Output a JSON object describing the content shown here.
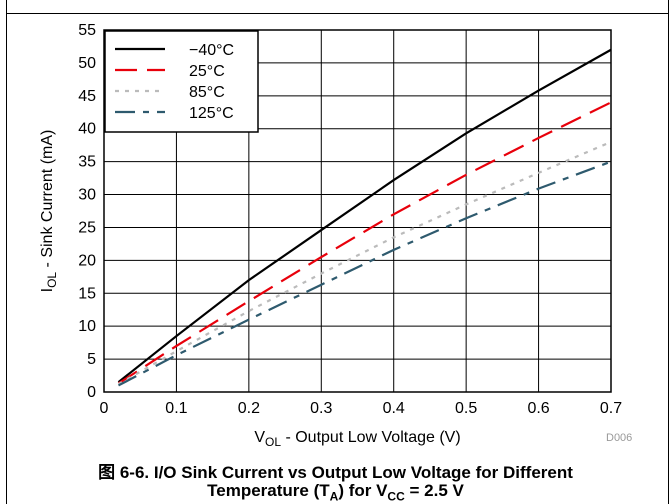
{
  "chart_data": {
    "type": "line",
    "xlabel_parts": [
      "V",
      "OL",
      " - Output Low Voltage (V)"
    ],
    "ylabel_parts": [
      "I",
      "OL",
      " - Sink Current (mA)"
    ],
    "xlim": [
      0,
      0.7
    ],
    "ylim": [
      0,
      55
    ],
    "x_ticks": [
      "0",
      "0.1",
      "0.2",
      "0.3",
      "0.4",
      "0.5",
      "0.6",
      "0.7"
    ],
    "y_ticks": [
      "0",
      "5",
      "10",
      "15",
      "20",
      "25",
      "30",
      "35",
      "40",
      "45",
      "50",
      "55"
    ],
    "grid": true,
    "legend_position": "top-left",
    "series": [
      {
        "name": "−40°C",
        "color": "#000000",
        "dash": "solid",
        "x": [
          0.02,
          0.1,
          0.2,
          0.3,
          0.4,
          0.5,
          0.6,
          0.7
        ],
        "y": [
          1.5,
          8.5,
          17.0,
          24.6,
          32.2,
          39.3,
          45.8,
          52.0
        ]
      },
      {
        "name": "25°C",
        "color": "#e8000b",
        "dash": "longdash",
        "x": [
          0.02,
          0.1,
          0.2,
          0.3,
          0.4,
          0.5,
          0.6,
          0.7
        ],
        "y": [
          1.3,
          7.0,
          13.8,
          20.5,
          27.0,
          33.0,
          38.6,
          44.0
        ]
      },
      {
        "name": "85°C",
        "color": "#bbbbbb",
        "dash": "dotted",
        "x": [
          0.02,
          0.1,
          0.2,
          0.3,
          0.4,
          0.5,
          0.6,
          0.7
        ],
        "y": [
          1.2,
          6.2,
          12.3,
          18.0,
          23.5,
          28.5,
          33.3,
          38.0
        ]
      },
      {
        "name": "125°C",
        "color": "#2e5a6e",
        "dash": "dashdot",
        "x": [
          0.02,
          0.1,
          0.2,
          0.3,
          0.4,
          0.5,
          0.6,
          0.7
        ],
        "y": [
          1.0,
          5.6,
          11.0,
          16.3,
          21.6,
          26.4,
          30.9,
          35.0
        ]
      }
    ]
  },
  "figure_code": "D006",
  "caption_line1": "图 6-6. I/O Sink Current vs Output Low Voltage for Different",
  "caption_line2_parts": [
    "Temperature (T",
    "A",
    ") for V",
    "CC",
    " = 2.5 V"
  ]
}
